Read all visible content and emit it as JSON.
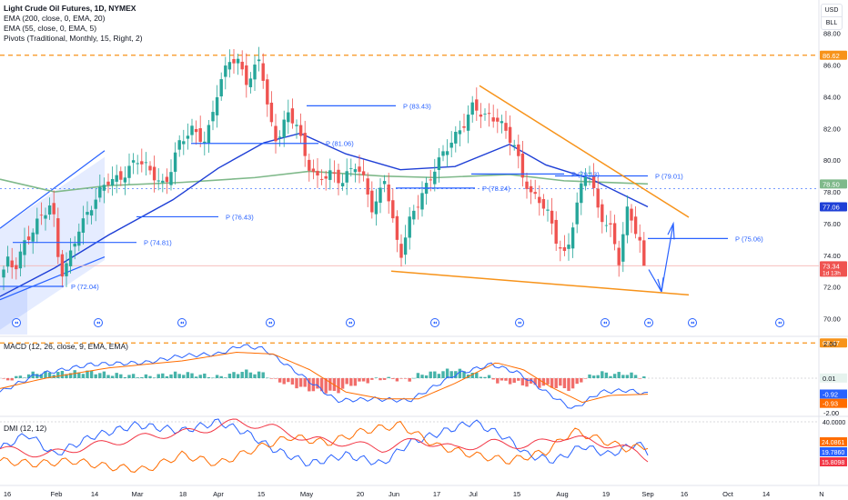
{
  "header": {
    "title": "Light Crude Oil Futures, 1D, NYMEX",
    "indicators": [
      "EMA (200, close, 0, EMA, 20)",
      "EMA (55, close, 0, EMA, 5)",
      "Pivots (Traditional, Monthly, 15, Right, 2)"
    ]
  },
  "toolbar": {
    "currency": "USD",
    "unit": "BLL"
  },
  "panes": {
    "macd_label": "MACD (12, 26, close, 9, EMA, EMA)",
    "dmi_label": "DMI (12, 12)"
  },
  "colors": {
    "up": "#26a69a",
    "down": "#ef5350",
    "ema55": "#1e3fd6",
    "ema200": "#7fb98a",
    "pivot": "#2962ff",
    "trend": "#f7931a",
    "macd": "#2962ff",
    "signal": "#ff6d00"
  },
  "chart_data": [
    {
      "type": "candlestick",
      "title": "Light Crude Oil Futures, 1D, NYMEX",
      "x_ticks": [
        "16",
        "Feb",
        "14",
        "Mar",
        "18",
        "Apr",
        "15",
        "May",
        "20",
        "Jun",
        "17",
        "Jul",
        "15",
        "Aug",
        "19",
        "Sep",
        "16",
        "Oct",
        "14",
        "N"
      ],
      "ylim": [
        69.0,
        88.5
      ],
      "y_ticks": [
        70.0,
        72.0,
        74.0,
        76.0,
        78.0,
        80.0,
        82.0,
        84.0,
        86.0,
        88.0
      ],
      "price_labels": [
        {
          "text": "86.62",
          "value": 86.62,
          "color": "#f7931a"
        },
        {
          "text": "78.50",
          "value": 78.5,
          "color": "#7fb98a"
        },
        {
          "text": "77.06",
          "value": 77.06,
          "color": "#1e3fd6"
        },
        {
          "text": "73.34",
          "sub": "1d 13h",
          "value": 73.34,
          "color": "#ef5350"
        },
        {
          "text": "68.47",
          "value": 68.47,
          "color": "#f7931a"
        }
      ],
      "pivots": [
        {
          "label": "P (72.04)",
          "value": 72.04
        },
        {
          "label": "P (74.81)",
          "value": 74.81
        },
        {
          "label": "P (76.43)",
          "value": 76.43
        },
        {
          "label": "P (81.06)",
          "value": 81.06
        },
        {
          "label": "P (83.43)",
          "value": 83.43
        },
        {
          "label": "P (78.24)",
          "value": 78.24
        },
        {
          "label": "P (79.13)",
          "value": 79.13
        },
        {
          "label": "P (79.01)",
          "value": 79.01
        },
        {
          "label": "P (75.06)",
          "value": 75.06
        }
      ],
      "horizontal_levels": [
        86.62,
        68.47
      ],
      "ema200_end": 78.5,
      "ema55_end": 77.06,
      "last_close": 73.34
    },
    {
      "type": "line",
      "title": "MACD (12, 26, close, 9, EMA, EMA)",
      "y_ticks": [
        2.0,
        0.01,
        -0.92,
        -0.93,
        -2.0
      ],
      "series": [
        {
          "name": "MACD",
          "last": -0.92
        },
        {
          "name": "Signal",
          "last": -0.93
        }
      ],
      "labels": [
        "2.00",
        "0.01",
        "-0.92",
        "-0.93",
        "-2.00"
      ]
    },
    {
      "type": "line",
      "title": "DMI (12, 12)",
      "y_ticks": [
        40.0
      ],
      "series": [
        {
          "name": "+DI",
          "last": 19.786
        },
        {
          "name": "-DI",
          "last": 24.0861
        },
        {
          "name": "ADX",
          "last": 15.8098
        }
      ],
      "labels": [
        "40.0000",
        "24.0861",
        "19.7860",
        "15.8098"
      ]
    }
  ]
}
